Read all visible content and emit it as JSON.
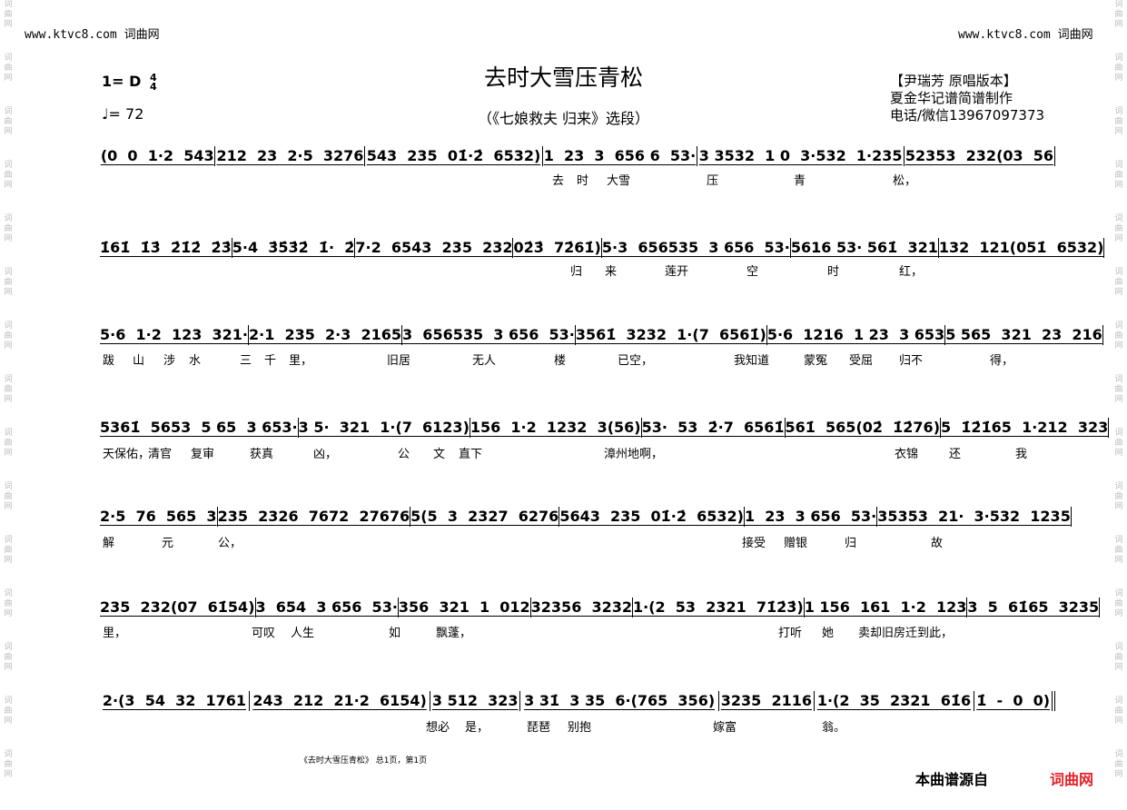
{
  "watermark": {
    "site": "www.ktvc8.com 词曲网",
    "side_text": "词曲网",
    "source_label": "本曲谱源自",
    "source_site": "词曲网",
    "source_color": "#e8202a"
  },
  "header": {
    "title": "去时大雪压青松",
    "subtitle": "（《七娘救夫 归来》选段）",
    "key": "1= D",
    "time_top": "4",
    "time_bottom": "4",
    "tempo": "♩= 72",
    "credits": [
      "【尹瑞芳 原唱版本】",
      "夏金华记谱简谱制作",
      "电话/微信13967097373"
    ]
  },
  "score": [
    {
      "measures": [
        "(0  0  1·2  543",
        "212  23  2·5  3276",
        "543  235  01̇·2̇  6532)",
        "1  23  3  656 6  53·",
        "3 3532  1 0  3·532  1·235",
        "52353  232(03  56"
      ],
      "lyrics": [
        "去",
        "时",
        "大雪",
        "压",
        "青",
        "松，"
      ]
    },
    {
      "measures": [
        "1̇61̇  1̇3̇  2̇1̇2̇  2̇3̇",
        "5·4  3̇5̇3̇2̇  1̇·  2̇",
        "7·2  6543  235  232",
        "02̇3̇  72̇61̇)",
        "5·3  656535  3 656  53·",
        "5616 53· 561̇  321",
        "132  121(051̇  6532)"
      ],
      "lyrics": [
        "归",
        "来",
        "莲开",
        "空",
        "时",
        "红，"
      ]
    },
    {
      "measures": [
        "5·6  1·2  123  321·",
        "2·1  235  2·3  2165",
        "3  656535  3 656  53·",
        "3561̇  3232  1·(7  6561̇)",
        "5·6  1216  1 23  3 653",
        "5 565  321  23  216"
      ],
      "lyrics": [
        "跋",
        "山",
        "涉",
        "水",
        "三",
        "千",
        "里，",
        "旧居",
        "无人",
        "楼",
        "已空，",
        "我知道",
        "蒙冤",
        "受屈",
        "归不",
        "得，"
      ]
    },
    {
      "measures": [
        "5361̇  5653  5 65  3 653·",
        "3 5·  321  1·(7  6123)",
        "156  1·2  1232  3(56)",
        "53·  53  2̇·7  6561̇",
        "561̇  565(02̇  1̇2̇76)",
        "5  1̇2̇1̇65  1·212  323"
      ],
      "lyrics": [
        "天保佑，",
        "清官",
        "复审",
        "获真",
        "凶，",
        "公",
        "文",
        "直下",
        "漳州地啊，",
        "衣锦",
        "还",
        "我"
      ]
    },
    {
      "measures": [
        "2·5  76  565  3",
        "235  2326  7672  27676",
        "5(5  3  2327  6276",
        "5643  235  01̇·2̇  6532)",
        "1  23  3 656  53·",
        "35353  21·  3·532  1235"
      ],
      "lyrics": [
        "解",
        "元",
        "公，",
        "接受",
        "赠银",
        "归",
        "故"
      ]
    },
    {
      "measures": [
        "235  232(07  61̇54)",
        "3  654  3 656  53·",
        "356  321  1  012",
        "32356  3232",
        "1·(2  53  2321  71̇2̇3̇)",
        "1 156  161  1·2  123",
        "3  5  61̇65  3235"
      ],
      "lyrics": [
        "里，",
        "可叹",
        "人生",
        "如",
        "飘蓬，",
        "打听",
        "她",
        "卖却旧房迁到此，"
      ]
    },
    {
      "measures": [
        "2·(3  54  32  1761",
        "243  212  21·2  6154)",
        "3 512  323",
        "3 31̇  3 35  6·(765  356)",
        "3235  2116",
        "1·(2  35  2321  61̇6",
        "1̇  -  0  0)"
      ],
      "lyrics": [
        "想必",
        "是，",
        "琵琶",
        "别抱",
        "嫁富",
        "翁。"
      ]
    }
  ],
  "footer": "《去时大雪压青松》 总1页，第1页"
}
